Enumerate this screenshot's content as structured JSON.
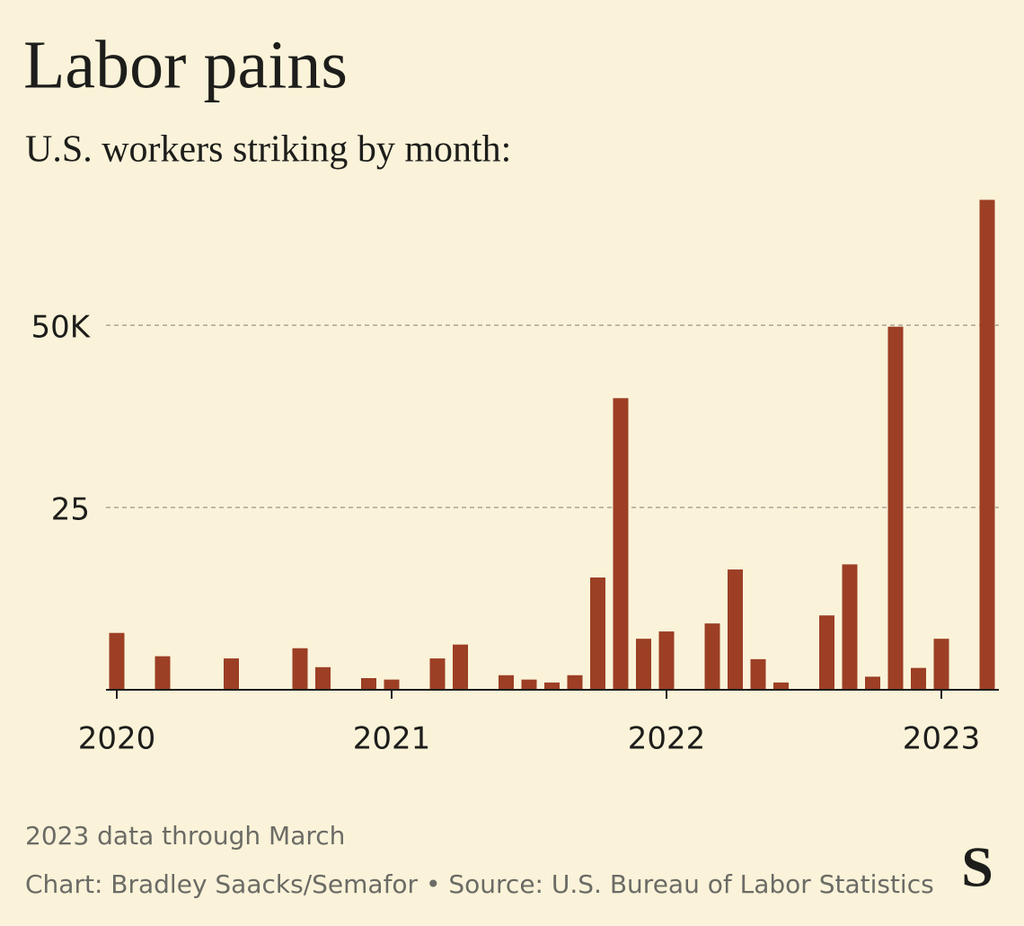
{
  "chart_data": {
    "type": "bar",
    "title": "Labor pains",
    "subtitle": "U.S. workers striking by month:",
    "note": "2023 data through March",
    "source": "Chart: Bradley Saacks/Semafor • Source: U.S. Bureau of Labor Statistics",
    "logo": "S",
    "categories": [
      "2020",
      null,
      null,
      null,
      null,
      null,
      null,
      null,
      null,
      null,
      null,
      null,
      "2021",
      null,
      null,
      null,
      null,
      null,
      null,
      null,
      null,
      null,
      null,
      null,
      "2022",
      null,
      null,
      null,
      null,
      null,
      null,
      null,
      null,
      null,
      null,
      null,
      "2023",
      null,
      null
    ],
    "values": [
      7.8,
      0,
      4.6,
      0,
      0,
      4.3,
      0,
      0,
      5.7,
      3.1,
      0,
      1.6,
      1.4,
      0,
      4.3,
      6.2,
      0,
      2.0,
      1.4,
      1.0,
      2.0,
      15.4,
      40,
      7.0,
      8.0,
      0,
      9.1,
      16.5,
      4.2,
      1.0,
      0,
      10.2,
      17.2,
      1.8,
      49.8,
      3.0,
      7.0,
      0,
      67.2
    ],
    "color": "#9c3f25",
    "ylim": [
      0,
      68
    ],
    "yticks": [
      25,
      {
        "value": 50,
        "label": "50K"
      }
    ],
    "grid": true
  }
}
